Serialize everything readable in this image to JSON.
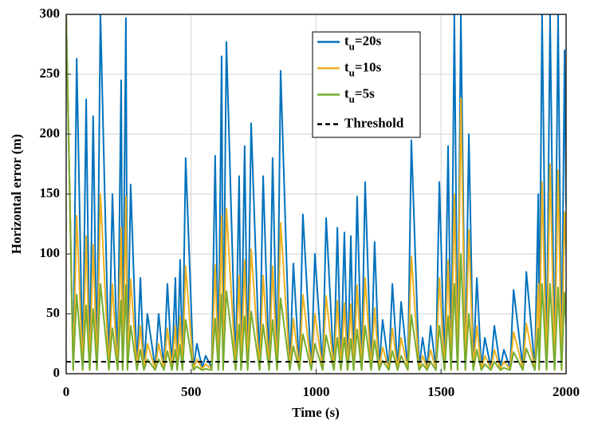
{
  "chart_data": {
    "type": "line",
    "xlabel": "Time (s)",
    "ylabel": "Horizontal error (m)",
    "xlim": [
      0,
      2000
    ],
    "ylim": [
      0,
      300
    ],
    "xticks": [
      0,
      500,
      1000,
      1500,
      2000
    ],
    "yticks": [
      0,
      50,
      100,
      150,
      200,
      250,
      300
    ],
    "grid": true,
    "legend": "upper center",
    "x": [
      0,
      28,
      42,
      66,
      80,
      94,
      108,
      123,
      137,
      171,
      185,
      206,
      220,
      226,
      239,
      245,
      258,
      283,
      297,
      311,
      325,
      356,
      370,
      391,
      405,
      423,
      437,
      444,
      456,
      465,
      478,
      509,
      523,
      544,
      558,
      582,
      596,
      609,
      622,
      628,
      641,
      678,
      692,
      700,
      714,
      726,
      740,
      774,
      788,
      812,
      826,
      844,
      858,
      895,
      909,
      933,
      947,
      981,
      995,
      1026,
      1040,
      1071,
      1085,
      1099,
      1113,
      1126,
      1139,
      1150,
      1164,
      1182,
      1196,
      1220,
      1234,
      1252,
      1266,
      1291,
      1305,
      1326,
      1340,
      1367,
      1381,
      1412,
      1426,
      1444,
      1458,
      1479,
      1493,
      1514,
      1528,
      1540,
      1553,
      1566,
      1579,
      1597,
      1611,
      1629,
      1643,
      1661,
      1675,
      1699,
      1713,
      1737,
      1751,
      1776,
      1790,
      1827,
      1841,
      1875,
      1889,
      1892,
      1904,
      1922,
      1936,
      1954,
      1968,
      1982,
      1994,
      2000
    ],
    "series": [
      {
        "name": "tu=20s",
        "color": "#0072bd",
        "values": [
          300,
          5,
          263,
          5,
          229,
          5,
          215,
          5,
          300,
          5,
          150,
          5,
          245,
          5,
          297,
          5,
          158,
          5,
          80,
          5,
          50,
          5,
          50,
          5,
          75,
          5,
          80,
          5,
          95,
          5,
          180,
          5,
          25,
          5,
          15,
          5,
          182,
          5,
          265,
          5,
          277,
          5,
          165,
          5,
          190,
          5,
          209,
          5,
          165,
          5,
          180,
          5,
          253,
          5,
          92,
          5,
          133,
          5,
          100,
          5,
          130,
          5,
          122,
          5,
          118,
          5,
          115,
          5,
          148,
          5,
          160,
          5,
          110,
          5,
          45,
          5,
          75,
          5,
          60,
          5,
          195,
          5,
          30,
          5,
          40,
          5,
          160,
          5,
          190,
          5,
          300,
          5,
          300,
          5,
          200,
          5,
          80,
          5,
          30,
          5,
          40,
          5,
          20,
          5,
          70,
          5,
          85,
          5,
          150,
          5,
          300,
          5,
          300,
          5,
          300,
          5,
          270,
          140
        ]
      },
      {
        "name": "tu=10s",
        "color": "#edb120",
        "values": [
          300,
          4,
          132,
          4,
          115,
          4,
          108,
          4,
          150,
          4,
          75,
          4,
          122,
          4,
          148,
          4,
          79,
          4,
          40,
          4,
          25,
          4,
          25,
          4,
          38,
          4,
          40,
          4,
          48,
          4,
          90,
          4,
          12,
          4,
          8,
          4,
          91,
          4,
          132,
          4,
          138,
          4,
          82,
          4,
          95,
          4,
          104,
          4,
          82,
          4,
          90,
          4,
          126,
          4,
          46,
          4,
          66,
          4,
          50,
          4,
          65,
          4,
          61,
          4,
          59,
          4,
          58,
          4,
          74,
          4,
          80,
          4,
          55,
          4,
          22,
          4,
          38,
          4,
          30,
          4,
          98,
          4,
          15,
          4,
          20,
          4,
          80,
          4,
          95,
          4,
          150,
          4,
          230,
          4,
          120,
          4,
          40,
          4,
          15,
          4,
          20,
          4,
          10,
          4,
          35,
          4,
          42,
          4,
          75,
          4,
          160,
          4,
          175,
          4,
          170,
          4,
          135,
          100
        ]
      },
      {
        "name": "tu=5s",
        "color": "#77ac30",
        "values": [
          300,
          3,
          66,
          3,
          57,
          3,
          54,
          3,
          75,
          3,
          38,
          3,
          61,
          3,
          74,
          3,
          40,
          3,
          20,
          3,
          12,
          3,
          12,
          3,
          19,
          3,
          20,
          3,
          24,
          3,
          45,
          3,
          6,
          3,
          4,
          3,
          46,
          3,
          66,
          3,
          69,
          3,
          41,
          3,
          48,
          3,
          52,
          3,
          41,
          3,
          45,
          3,
          63,
          3,
          23,
          3,
          33,
          3,
          25,
          3,
          32,
          3,
          30,
          3,
          30,
          3,
          29,
          3,
          37,
          3,
          40,
          3,
          28,
          3,
          11,
          3,
          19,
          3,
          15,
          3,
          49,
          3,
          8,
          3,
          10,
          3,
          40,
          3,
          48,
          3,
          75,
          3,
          100,
          3,
          50,
          3,
          20,
          3,
          8,
          3,
          10,
          3,
          5,
          3,
          18,
          3,
          21,
          3,
          38,
          3,
          75,
          3,
          75,
          3,
          72,
          3,
          68,
          40
        ]
      }
    ],
    "threshold": {
      "name": "Threshold",
      "value": 10,
      "color": "#000000"
    }
  }
}
